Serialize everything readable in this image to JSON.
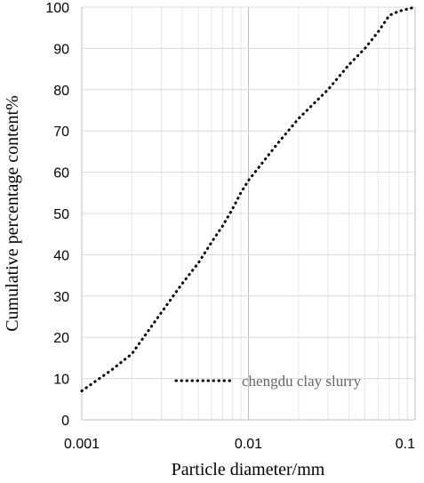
{
  "chart_data": {
    "type": "line",
    "x_scale": "log",
    "xlabel": "Particle diameter/mm",
    "ylabel": "Cumulative percentage content%",
    "xlim": [
      0.001,
      0.1
    ],
    "ylim": [
      0,
      100
    ],
    "x_ticks": [
      "0.001",
      "0.01",
      "0.1"
    ],
    "y_ticks": [
      "0",
      "10",
      "20",
      "30",
      "40",
      "50",
      "60",
      "70",
      "80",
      "90",
      "100"
    ],
    "grid": true,
    "legend_position": "bottom-right",
    "series": [
      {
        "name": "chengdu clay slurry",
        "line_style": "dotted",
        "color": "#000000",
        "x": [
          0.001,
          0.0015,
          0.002,
          0.003,
          0.004,
          0.005,
          0.006,
          0.007,
          0.008,
          0.009,
          0.01,
          0.015,
          0.02,
          0.03,
          0.04,
          0.05,
          0.06,
          0.07,
          0.08,
          0.1
        ],
        "y": [
          7,
          12,
          16,
          26,
          33,
          38,
          43,
          47,
          51,
          55,
          58,
          67,
          73,
          80,
          86,
          90,
          94,
          98,
          99,
          100
        ]
      }
    ]
  }
}
